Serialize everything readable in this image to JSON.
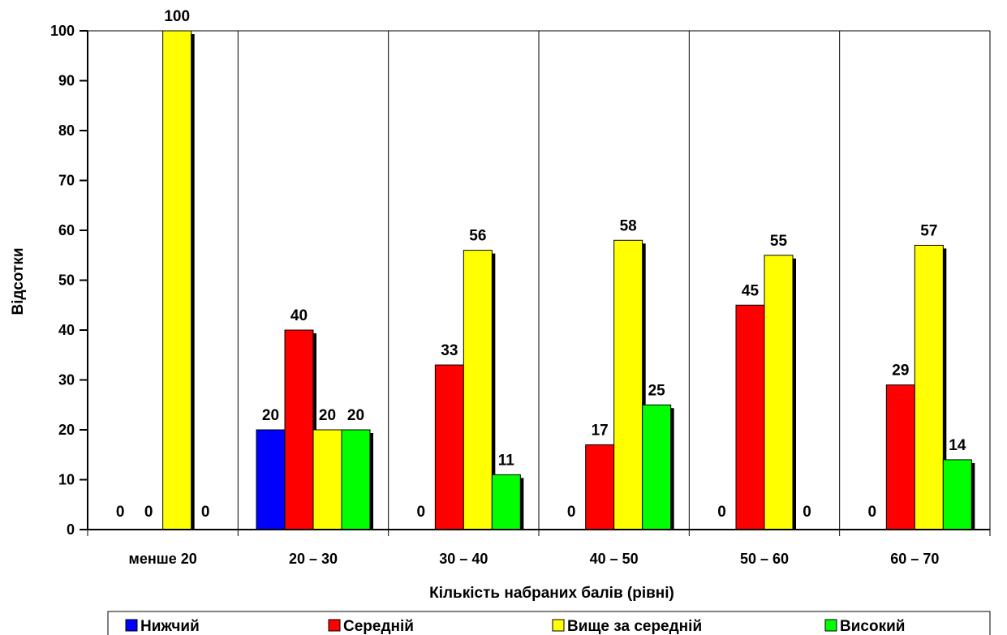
{
  "chart_data": {
    "type": "bar",
    "xlabel": "Кількість набраних балів (рівні)",
    "ylabel": "Відсотки",
    "ylim": [
      0,
      100
    ],
    "yticks": [
      0,
      10,
      20,
      30,
      40,
      50,
      60,
      70,
      80,
      90,
      100
    ],
    "grid": "vertical separators between categories",
    "legend_placement": "bottom",
    "categories": [
      "менше 20",
      "20 – 30",
      "30 – 40",
      "40 – 50",
      "50 – 60",
      "60 – 70"
    ],
    "series": [
      {
        "name": "Нижчий",
        "color": "#0000ff",
        "values": [
          0,
          20,
          0,
          0,
          0,
          0
        ]
      },
      {
        "name": "Середній",
        "color": "#ff0000",
        "values": [
          0,
          40,
          33,
          17,
          45,
          29
        ]
      },
      {
        "name": "Вище за середній",
        "color": "#ffff00",
        "values": [
          100,
          20,
          56,
          58,
          55,
          57
        ]
      },
      {
        "name": "Високий",
        "color": "#00ff00",
        "values": [
          0,
          20,
          11,
          25,
          0,
          14
        ]
      }
    ]
  }
}
